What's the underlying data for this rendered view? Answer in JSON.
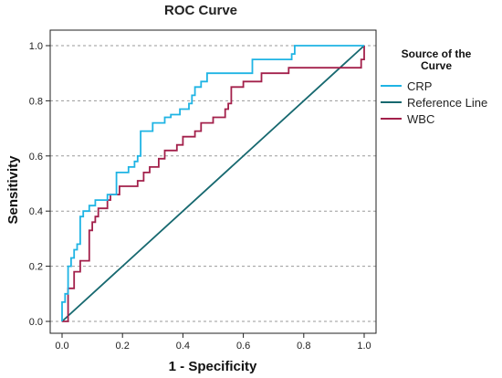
{
  "chart_data": {
    "type": "line",
    "title": "ROC Curve",
    "xlabel": "1 - Specificity",
    "ylabel": "Sensitivity",
    "xlim": [
      0,
      1
    ],
    "ylim": [
      0,
      1
    ],
    "x_ticks": [
      "0.0",
      "0.2",
      "0.4",
      "0.6",
      "0.8",
      "1.0"
    ],
    "y_ticks": [
      "0.0",
      "0.2",
      "0.4",
      "0.6",
      "0.8",
      "1.0"
    ],
    "grid": "horizontal dashed",
    "legend": {
      "title": "Source of the Curve",
      "title_lines": [
        "Source of the",
        "Curve"
      ],
      "placement": "right"
    },
    "series": [
      {
        "name": "CRP",
        "color": "#1fb4e4",
        "step": true,
        "points": [
          [
            0,
            0
          ],
          [
            0,
            0.07
          ],
          [
            0.01,
            0.07
          ],
          [
            0.01,
            0.1
          ],
          [
            0.02,
            0.1
          ],
          [
            0.02,
            0.2
          ],
          [
            0.03,
            0.2
          ],
          [
            0.03,
            0.23
          ],
          [
            0.04,
            0.23
          ],
          [
            0.04,
            0.26
          ],
          [
            0.05,
            0.26
          ],
          [
            0.05,
            0.28
          ],
          [
            0.06,
            0.28
          ],
          [
            0.06,
            0.38
          ],
          [
            0.07,
            0.38
          ],
          [
            0.07,
            0.4
          ],
          [
            0.09,
            0.4
          ],
          [
            0.09,
            0.42
          ],
          [
            0.11,
            0.42
          ],
          [
            0.11,
            0.44
          ],
          [
            0.15,
            0.44
          ],
          [
            0.15,
            0.46
          ],
          [
            0.18,
            0.46
          ],
          [
            0.18,
            0.54
          ],
          [
            0.22,
            0.54
          ],
          [
            0.22,
            0.56
          ],
          [
            0.24,
            0.56
          ],
          [
            0.24,
            0.58
          ],
          [
            0.25,
            0.58
          ],
          [
            0.25,
            0.6
          ],
          [
            0.26,
            0.6
          ],
          [
            0.26,
            0.69
          ],
          [
            0.3,
            0.69
          ],
          [
            0.3,
            0.72
          ],
          [
            0.34,
            0.72
          ],
          [
            0.34,
            0.74
          ],
          [
            0.36,
            0.74
          ],
          [
            0.36,
            0.75
          ],
          [
            0.39,
            0.75
          ],
          [
            0.39,
            0.77
          ],
          [
            0.42,
            0.77
          ],
          [
            0.42,
            0.79
          ],
          [
            0.43,
            0.79
          ],
          [
            0.43,
            0.82
          ],
          [
            0.44,
            0.82
          ],
          [
            0.44,
            0.85
          ],
          [
            0.46,
            0.85
          ],
          [
            0.46,
            0.87
          ],
          [
            0.48,
            0.87
          ],
          [
            0.48,
            0.9
          ],
          [
            0.63,
            0.9
          ],
          [
            0.63,
            0.95
          ],
          [
            0.76,
            0.95
          ],
          [
            0.76,
            0.97
          ],
          [
            0.77,
            0.97
          ],
          [
            0.77,
            1.0
          ],
          [
            1.0,
            1.0
          ]
        ]
      },
      {
        "name": "Reference Line",
        "color": "#16686f",
        "step": false,
        "points": [
          [
            0,
            0
          ],
          [
            1,
            1
          ]
        ]
      },
      {
        "name": "WBC",
        "color": "#a3204b",
        "step": true,
        "points": [
          [
            0,
            0
          ],
          [
            0.02,
            0
          ],
          [
            0.02,
            0.12
          ],
          [
            0.04,
            0.12
          ],
          [
            0.04,
            0.18
          ],
          [
            0.06,
            0.18
          ],
          [
            0.06,
            0.22
          ],
          [
            0.09,
            0.22
          ],
          [
            0.09,
            0.33
          ],
          [
            0.1,
            0.33
          ],
          [
            0.1,
            0.36
          ],
          [
            0.11,
            0.36
          ],
          [
            0.11,
            0.38
          ],
          [
            0.12,
            0.38
          ],
          [
            0.12,
            0.41
          ],
          [
            0.15,
            0.41
          ],
          [
            0.15,
            0.44
          ],
          [
            0.16,
            0.44
          ],
          [
            0.16,
            0.46
          ],
          [
            0.19,
            0.46
          ],
          [
            0.19,
            0.49
          ],
          [
            0.25,
            0.49
          ],
          [
            0.25,
            0.51
          ],
          [
            0.27,
            0.51
          ],
          [
            0.27,
            0.54
          ],
          [
            0.29,
            0.54
          ],
          [
            0.29,
            0.56
          ],
          [
            0.32,
            0.56
          ],
          [
            0.32,
            0.59
          ],
          [
            0.34,
            0.59
          ],
          [
            0.34,
            0.62
          ],
          [
            0.38,
            0.62
          ],
          [
            0.38,
            0.64
          ],
          [
            0.4,
            0.64
          ],
          [
            0.4,
            0.67
          ],
          [
            0.44,
            0.67
          ],
          [
            0.44,
            0.69
          ],
          [
            0.46,
            0.69
          ],
          [
            0.46,
            0.72
          ],
          [
            0.5,
            0.72
          ],
          [
            0.5,
            0.74
          ],
          [
            0.54,
            0.74
          ],
          [
            0.54,
            0.77
          ],
          [
            0.55,
            0.77
          ],
          [
            0.55,
            0.79
          ],
          [
            0.56,
            0.79
          ],
          [
            0.56,
            0.85
          ],
          [
            0.6,
            0.85
          ],
          [
            0.6,
            0.87
          ],
          [
            0.66,
            0.87
          ],
          [
            0.66,
            0.9
          ],
          [
            0.75,
            0.9
          ],
          [
            0.75,
            0.92
          ],
          [
            0.99,
            0.92
          ],
          [
            0.99,
            0.95
          ],
          [
            1.0,
            0.95
          ],
          [
            1.0,
            1.0
          ]
        ]
      }
    ]
  }
}
